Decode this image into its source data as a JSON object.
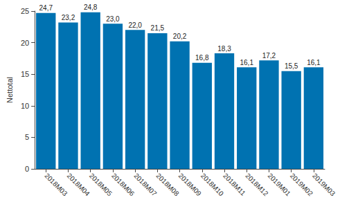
{
  "chart_data": {
    "type": "bar",
    "y_label": "Nettotal",
    "categories": [
      "2018M03",
      "2018M04",
      "2018M05",
      "2018M06",
      "2018M07",
      "2018M08",
      "2018M09",
      "2018M10",
      "2018M11",
      "2018M12",
      "2019M01",
      "2019M02",
      "2019M03"
    ],
    "values": [
      24.7,
      23.2,
      24.8,
      23.0,
      22.0,
      21.5,
      20.2,
      16.8,
      18.3,
      16.1,
      17.2,
      15.5,
      16.1
    ],
    "value_labels": [
      "24,7",
      "23,2",
      "24,8",
      "23,0",
      "22,0",
      "21,5",
      "20,2",
      "16,8",
      "18,3",
      "16,1",
      "17,2",
      "15,5",
      "16,1"
    ],
    "data_labels": true,
    "color": "#0072b1",
    "ylim": [
      0,
      25
    ],
    "yticks": [
      0,
      5,
      10,
      15,
      20,
      25
    ],
    "grid": false
  }
}
